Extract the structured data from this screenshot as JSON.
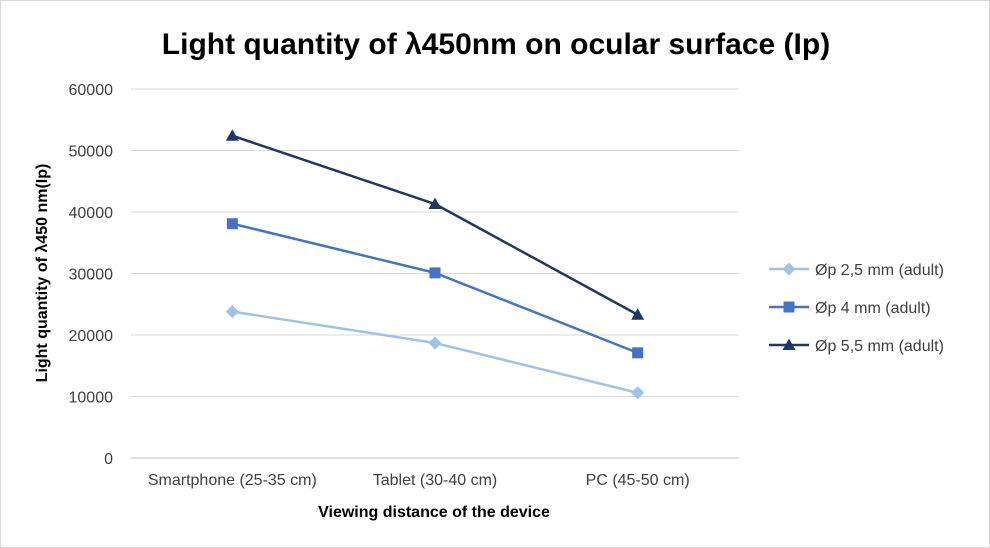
{
  "chart_data": {
    "type": "line",
    "title": "Light quantity of λ450nm on ocular surface (Ip)",
    "xlabel": "Viewing distance of the device",
    "ylabel": "Light quantity of  λ450 nm(Ip)",
    "categories": [
      "Smartphone (25-35 cm)",
      "Tablet (30-40 cm)",
      "PC (45-50 cm)"
    ],
    "ylim": [
      0,
      60000
    ],
    "yticks": [
      "0",
      "10000",
      "20000",
      "30000",
      "40000",
      "50000",
      "60000"
    ],
    "grid": true,
    "legend_position": "right",
    "series": [
      {
        "name": "Øp 2,5 mm (adult)",
        "values": [
          23800,
          18700,
          10600
        ],
        "color": "#9dc3e6",
        "marker": "diamond"
      },
      {
        "name": "Øp 4 mm (adult)",
        "values": [
          38100,
          30100,
          17100
        ],
        "color": "#4472c4",
        "marker": "square"
      },
      {
        "name": "Øp 5,5 mm (adult)",
        "values": [
          52400,
          41300,
          23300
        ],
        "color": "#203864",
        "marker": "triangle"
      }
    ]
  }
}
